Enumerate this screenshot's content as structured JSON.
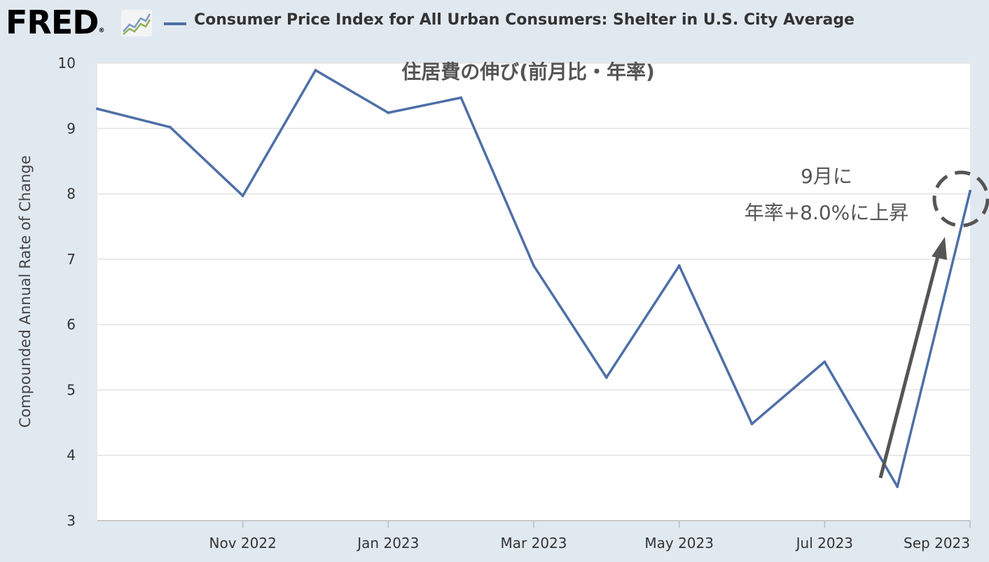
{
  "header": {
    "logo_text": "FRED",
    "logo_reg": "®",
    "legend_label": "Consumer Price Index for All Urban Consumers: Shelter in U.S. City Average",
    "series_color": "#4e6fa7"
  },
  "chart_data": {
    "type": "line",
    "title": "住居費の伸び(前月比・年率)",
    "ylabel": "Compounded Annual Rate of Change",
    "xlabel": "",
    "ylim": [
      3,
      10
    ],
    "yticks": [
      3,
      4,
      5,
      6,
      7,
      8,
      9,
      10
    ],
    "xtick_labels": [
      "Nov 2022",
      "Jan 2023",
      "Mar 2023",
      "May 2023",
      "Jul 2023",
      "Sep 2023"
    ],
    "grid": "horizontal",
    "series": [
      {
        "x": [
          "2022-09",
          "2022-10",
          "2022-11",
          "2022-12",
          "2023-01",
          "2023-02",
          "2023-03",
          "2023-04",
          "2023-05",
          "2023-06",
          "2023-07",
          "2023-08",
          "2023-09"
        ],
        "values": [
          9.3,
          9.02,
          7.97,
          9.89,
          9.24,
          9.47,
          6.9,
          5.19,
          6.9,
          4.48,
          5.43,
          3.52,
          8.04
        ],
        "color": "#4e6fa7"
      }
    ],
    "annotations": {
      "line1": "9月に",
      "line2": "年率+8.0%に上昇",
      "arrow_color": "#555555",
      "circle_style": "dashed"
    }
  }
}
